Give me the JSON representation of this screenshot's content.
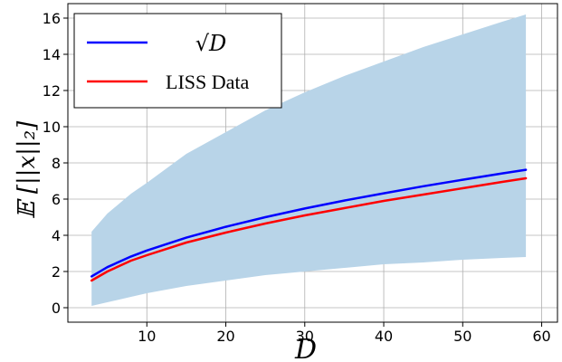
{
  "chart_data": {
    "type": "line",
    "title": "",
    "xlabel": "D",
    "ylabel": "𝔼 [||x||₂]",
    "xlim": [
      0,
      62
    ],
    "ylim": [
      -0.8,
      16.8
    ],
    "xticks": [
      10,
      20,
      30,
      40,
      50,
      60
    ],
    "yticks": [
      0,
      2,
      4,
      6,
      8,
      10,
      12,
      14,
      16
    ],
    "grid": true,
    "legend_position": "top-left",
    "series": [
      {
        "name": "√D",
        "color": "#0000ff",
        "x": [
          3,
          5,
          8,
          10,
          15,
          20,
          25,
          30,
          35,
          40,
          45,
          50,
          55,
          58
        ],
        "y": [
          1.73,
          2.24,
          2.83,
          3.16,
          3.87,
          4.47,
          5.0,
          5.48,
          5.92,
          6.32,
          6.71,
          7.07,
          7.42,
          7.62
        ]
      },
      {
        "name": "LISS Data",
        "color": "#ff0000",
        "x": [
          3,
          5,
          8,
          10,
          15,
          20,
          25,
          30,
          35,
          40,
          45,
          50,
          55,
          58
        ],
        "y": [
          1.5,
          2.0,
          2.6,
          2.9,
          3.6,
          4.15,
          4.65,
          5.1,
          5.5,
          5.9,
          6.25,
          6.6,
          6.95,
          7.15
        ]
      }
    ],
    "band": {
      "color": "#b8d4e8",
      "x": [
        3,
        5,
        8,
        10,
        15,
        20,
        25,
        30,
        35,
        40,
        45,
        50,
        55,
        58
      ],
      "upper": [
        4.2,
        5.2,
        6.3,
        6.9,
        8.5,
        9.7,
        10.9,
        11.9,
        12.8,
        13.6,
        14.4,
        15.1,
        15.8,
        16.2
      ],
      "lower": [
        0.1,
        0.3,
        0.6,
        0.8,
        1.2,
        1.5,
        1.8,
        2.0,
        2.2,
        2.4,
        2.5,
        2.65,
        2.75,
        2.8
      ]
    }
  }
}
